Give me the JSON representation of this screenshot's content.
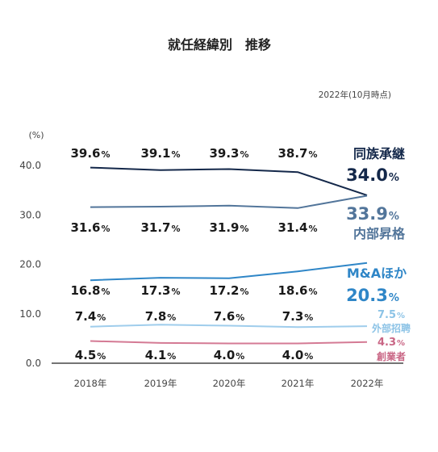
{
  "chart_data": {
    "type": "line",
    "title": "就任経緯別　推移",
    "note": "2022年(10月時点)",
    "ylabel": "(%)",
    "ylim": [
      0,
      40
    ],
    "yticks": [
      "0.0",
      "10.0",
      "20.0",
      "30.0",
      "40.0"
    ],
    "categories": [
      "2018年",
      "2019年",
      "2020年",
      "2021年",
      "2022年"
    ],
    "grid": false,
    "legend": "right (inline labels)",
    "series": [
      {
        "name": "同族承継",
        "values": [
          39.6,
          39.1,
          39.3,
          38.7,
          34.0
        ],
        "labels": [
          "39.6",
          "39.1",
          "39.3",
          "38.7",
          "34.0"
        ],
        "color": "#14284a",
        "label_color": "#14284a"
      },
      {
        "name": "内部昇格",
        "values": [
          31.6,
          31.7,
          31.9,
          31.4,
          33.9
        ],
        "labels": [
          "31.6",
          "31.7",
          "31.9",
          "31.4",
          "33.9"
        ],
        "color": "#52759a",
        "label_color": "#52759a"
      },
      {
        "name": "M&Aほか",
        "values": [
          16.8,
          17.3,
          17.2,
          18.6,
          20.3
        ],
        "labels": [
          "16.8",
          "17.3",
          "17.2",
          "18.6",
          "20.3"
        ],
        "color": "#2f86c7",
        "label_color": "#2f86c7"
      },
      {
        "name": "外部招聘",
        "values": [
          7.4,
          7.8,
          7.6,
          7.3,
          7.5
        ],
        "labels": [
          "7.4",
          "7.8",
          "7.6",
          "7.3",
          "7.5"
        ],
        "color": "#9fcdec",
        "label_color": "#8cc3e6"
      },
      {
        "name": "創業者",
        "values": [
          4.5,
          4.1,
          4.0,
          4.0,
          4.3
        ],
        "labels": [
          "4.5",
          "4.1",
          "4.0",
          "4.0",
          "4.3"
        ],
        "color": "#d47a94",
        "label_color": "#c96685"
      }
    ],
    "pct_sign": "%"
  }
}
